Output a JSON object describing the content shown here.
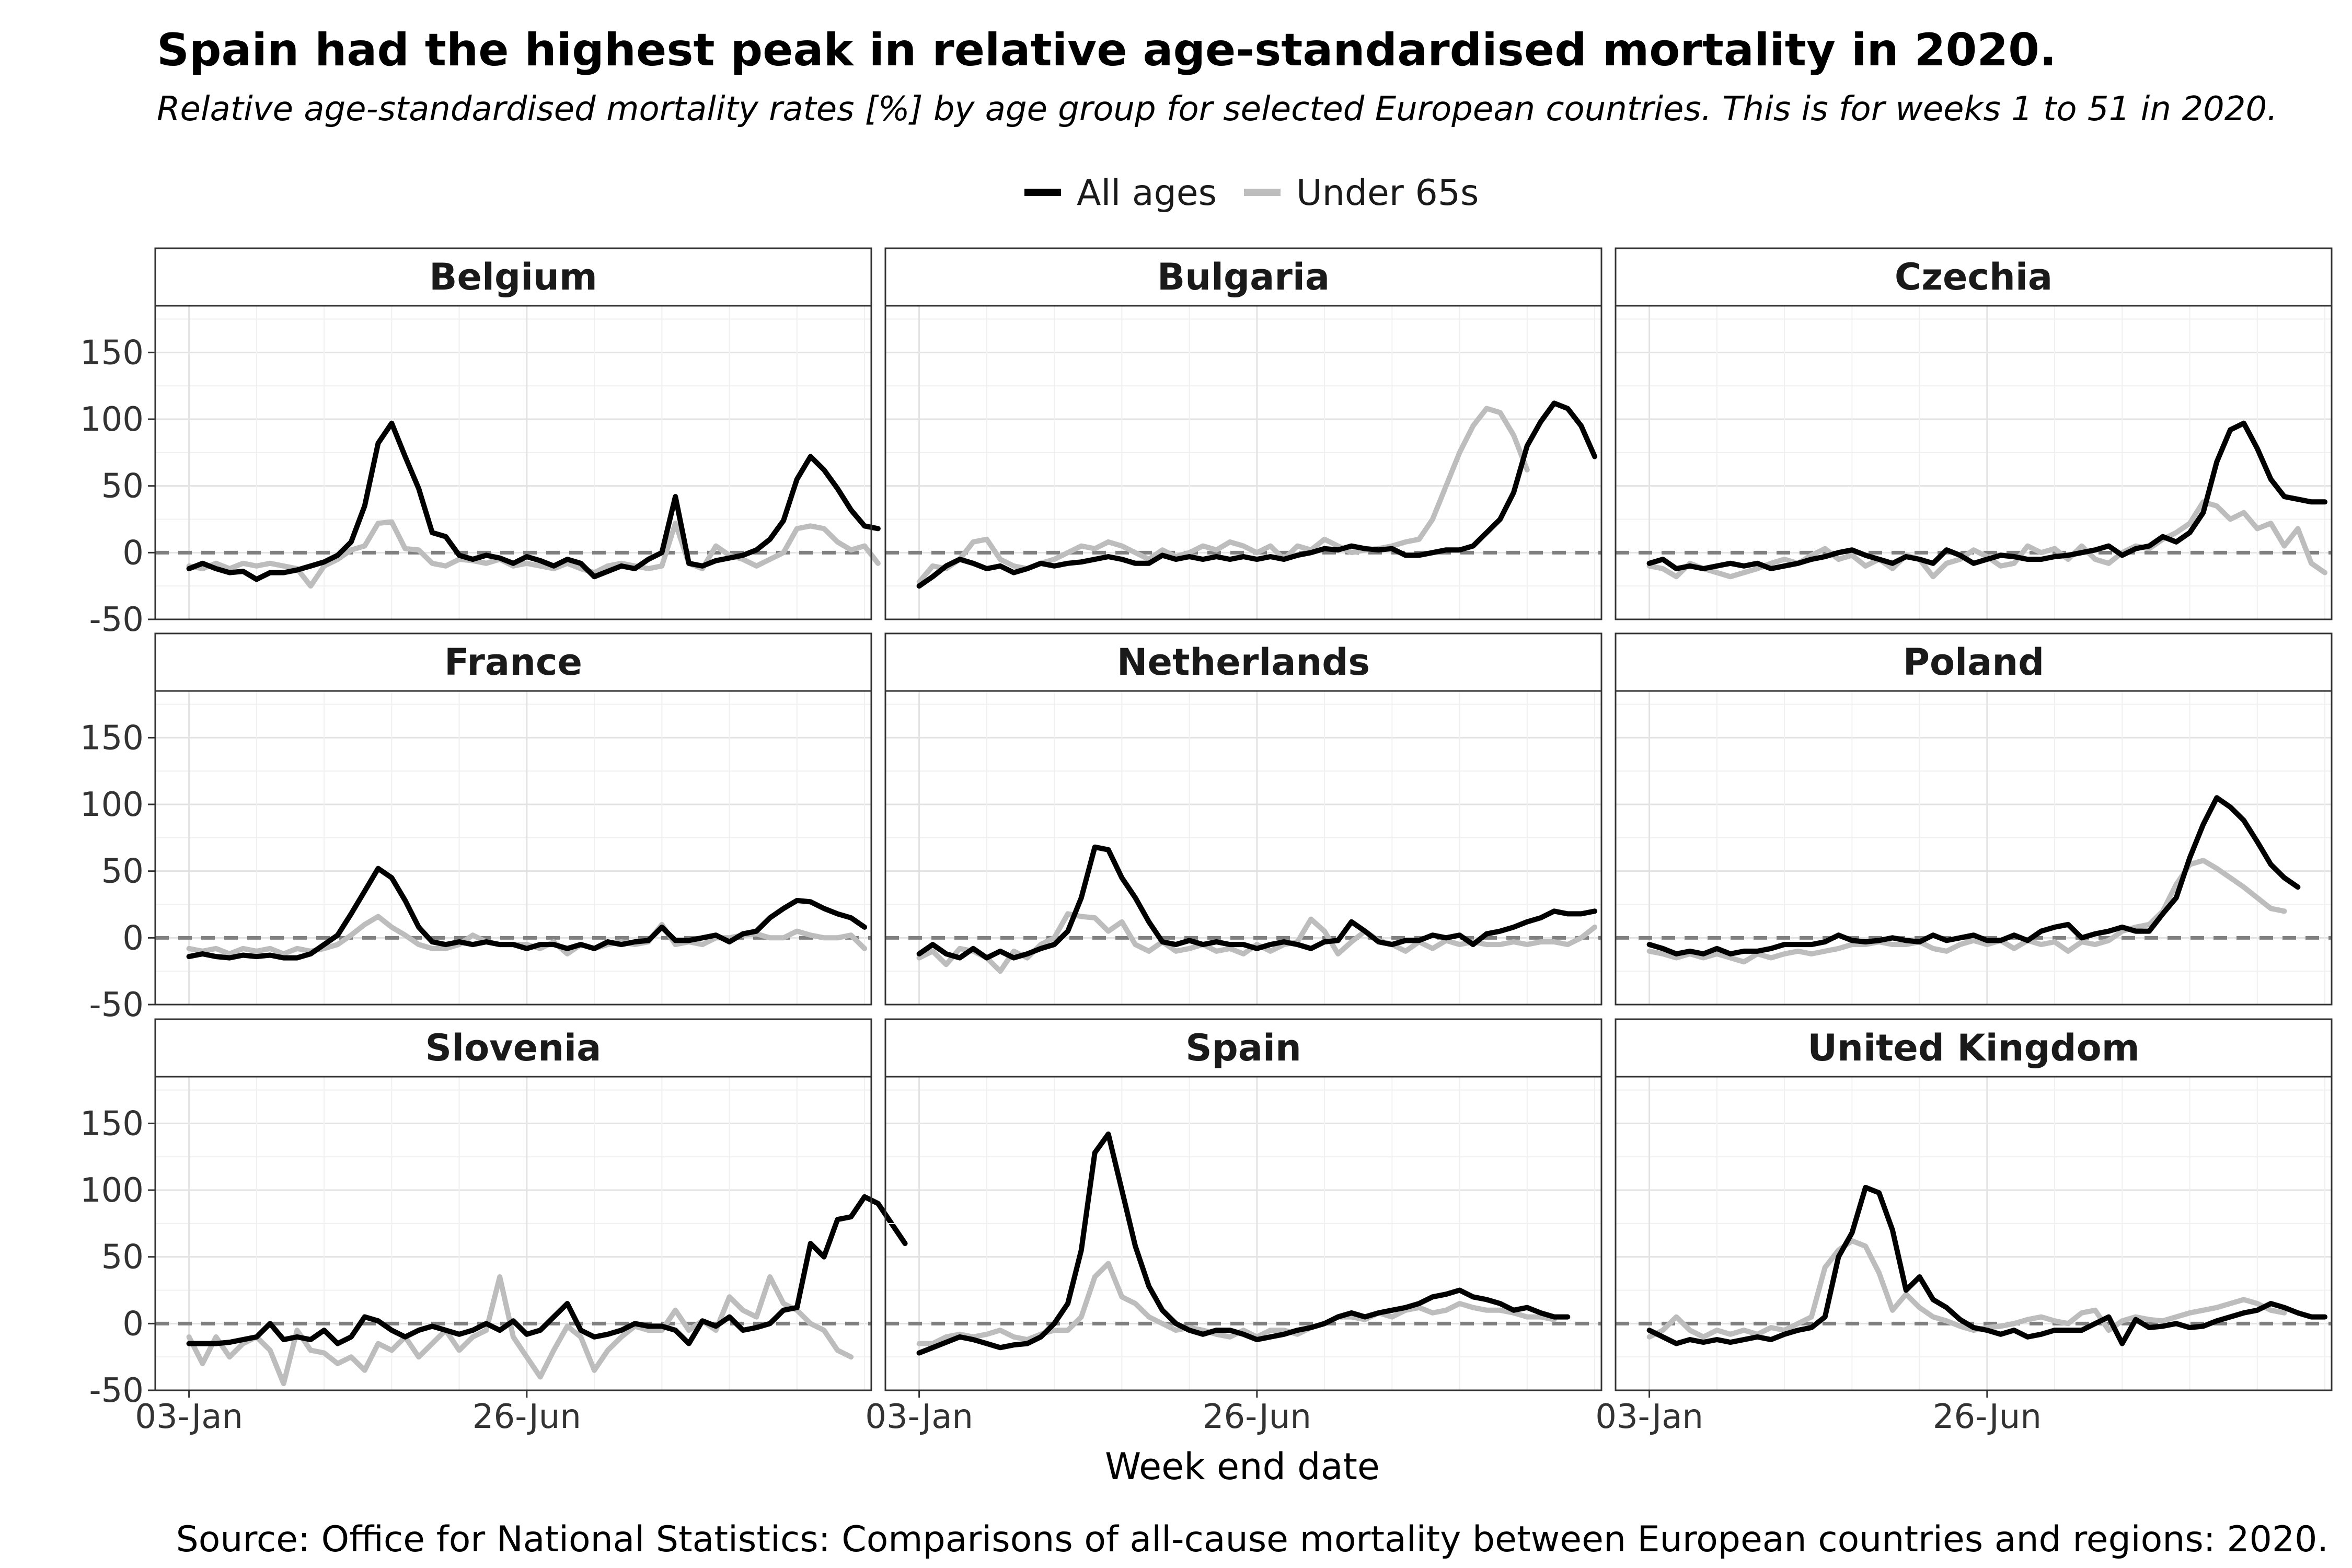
{
  "chart_data": {
    "type": "line",
    "title": "Spain had the highest peak in relative age-standardised mortality in 2020.",
    "subtitle": "Relative age-standardised mortality rates [%] by age group for selected European countries. This is for weeks 1 to 51 in 2020.",
    "xlabel": "Week end date",
    "ylabel": "",
    "caption": "Source: Office for National Statistics: Comparisons of all-cause mortality between European countries and regions: 2020.",
    "ylim": [
      -50,
      185
    ],
    "xlim": [
      -1.5,
      51.5
    ],
    "y_ticks": [
      -50,
      0,
      50,
      100,
      150
    ],
    "y_tick_labels": [
      "-50",
      "0",
      "50",
      "100",
      "150"
    ],
    "x_ticks": [
      {
        "week": 1,
        "label": "03-Jan"
      },
      {
        "week": 26,
        "label": "26-Jun"
      }
    ],
    "reference_line": 0,
    "legend_position": "top",
    "grid": true,
    "series_names": [
      "All ages",
      "Under 65s"
    ],
    "series_colors": {
      "All ages": "#000000",
      "Under 65s": "#bdbdbd"
    },
    "panels": [
      {
        "name": "Belgium",
        "series": [
          {
            "name": "All ages",
            "values": [
              -12,
              -8,
              -12,
              -15,
              -14,
              -20,
              -15,
              -15,
              -13,
              -10,
              -7,
              -2,
              8,
              35,
              82,
              97,
              72,
              48,
              15,
              12,
              -2,
              -5,
              -2,
              -4,
              -8,
              -3,
              -6,
              -10,
              -5,
              -8,
              -18,
              -14,
              -10,
              -12,
              -5,
              0,
              42,
              -8,
              -10,
              -6,
              -4,
              -2,
              2,
              10,
              24,
              55,
              72,
              62,
              48,
              32,
              20,
              18
            ]
          },
          {
            "name": "Under 65s",
            "values": [
              -10,
              -12,
              -8,
              -12,
              -8,
              -10,
              -8,
              -10,
              -12,
              -25,
              -10,
              -5,
              2,
              5,
              22,
              23,
              3,
              2,
              -8,
              -10,
              -5,
              -6,
              -8,
              -5,
              -10,
              -8,
              -10,
              -12,
              -8,
              -12,
              -15,
              -10,
              -8,
              -10,
              -12,
              -10,
              22,
              -8,
              -12,
              5,
              -2,
              -5,
              -10,
              -5,
              0,
              18,
              20,
              18,
              8,
              2,
              5,
              -8
            ]
          }
        ]
      },
      {
        "name": "Bulgaria",
        "series": [
          {
            "name": "All ages",
            "values": [
              -25,
              -18,
              -10,
              -5,
              -8,
              -12,
              -10,
              -15,
              -12,
              -8,
              -10,
              -8,
              -7,
              -5,
              -3,
              -5,
              -8,
              -8,
              -2,
              -5,
              -3,
              -5,
              -3,
              -5,
              -3,
              -5,
              -3,
              -5,
              -2,
              0,
              3,
              2,
              5,
              3,
              2,
              3,
              -2,
              -2,
              0,
              2,
              2,
              5,
              15,
              25,
              45,
              80,
              98,
              112,
              108,
              95,
              72
            ]
          },
          {
            "name": "Under 65s",
            "values": [
              -22,
              -10,
              -12,
              -5,
              8,
              10,
              -5,
              -10,
              -12,
              -8,
              -5,
              0,
              5,
              3,
              8,
              5,
              0,
              -5,
              2,
              -3,
              0,
              5,
              2,
              8,
              5,
              0,
              5,
              -5,
              5,
              2,
              10,
              5,
              0,
              2,
              3,
              5,
              8,
              10,
              25,
              50,
              75,
              95,
              108,
              105,
              88,
              62
            ]
          }
        ]
      },
      {
        "name": "Czechia",
        "series": [
          {
            "name": "All ages",
            "values": [
              -8,
              -5,
              -12,
              -10,
              -12,
              -10,
              -8,
              -10,
              -8,
              -12,
              -10,
              -8,
              -5,
              -3,
              0,
              2,
              -2,
              -5,
              -8,
              -3,
              -5,
              -8,
              2,
              -2,
              -8,
              -5,
              -2,
              -3,
              -5,
              -5,
              -3,
              -2,
              0,
              2,
              5,
              -2,
              3,
              5,
              12,
              8,
              15,
              30,
              68,
              92,
              97,
              78,
              55,
              42,
              40,
              38,
              38
            ]
          },
          {
            "name": "Under 65s",
            "values": [
              -10,
              -12,
              -18,
              -8,
              -12,
              -15,
              -18,
              -15,
              -12,
              -8,
              -5,
              -8,
              -2,
              3,
              -5,
              -2,
              -10,
              -5,
              -12,
              -2,
              -5,
              -18,
              -8,
              -5,
              2,
              -3,
              -10,
              -8,
              5,
              0,
              3,
              -5,
              5,
              -5,
              -8,
              0,
              5,
              3,
              10,
              15,
              22,
              38,
              35,
              25,
              30,
              18,
              22,
              5,
              18,
              -8,
              -15
            ]
          }
        ]
      },
      {
        "name": "France",
        "series": [
          {
            "name": "All ages",
            "values": [
              -14,
              -12,
              -14,
              -15,
              -13,
              -14,
              -13,
              -15,
              -15,
              -12,
              -5,
              2,
              18,
              35,
              52,
              45,
              28,
              8,
              -3,
              -5,
              -3,
              -5,
              -3,
              -5,
              -5,
              -8,
              -5,
              -5,
              -8,
              -5,
              -8,
              -3,
              -5,
              -3,
              -2,
              8,
              -2,
              -2,
              0,
              2,
              -3,
              3,
              5,
              15,
              22,
              28,
              27,
              22,
              18,
              15,
              8
            ]
          },
          {
            "name": "Under 65s",
            "values": [
              -8,
              -10,
              -8,
              -12,
              -8,
              -10,
              -8,
              -12,
              -8,
              -10,
              -8,
              -5,
              2,
              10,
              16,
              8,
              2,
              -5,
              -8,
              -8,
              -5,
              2,
              -3,
              -5,
              -5,
              -5,
              -8,
              -3,
              -12,
              -5,
              -8,
              -5,
              -3,
              -5,
              -3,
              10,
              -5,
              -3,
              -5,
              0,
              0,
              2,
              3,
              0,
              0,
              5,
              2,
              0,
              0,
              2,
              -8
            ]
          }
        ]
      },
      {
        "name": "Netherlands",
        "series": [
          {
            "name": "All ages",
            "values": [
              -12,
              -5,
              -12,
              -15,
              -8,
              -15,
              -10,
              -15,
              -12,
              -8,
              -5,
              5,
              30,
              68,
              66,
              45,
              30,
              12,
              -3,
              -5,
              -2,
              -5,
              -3,
              -5,
              -5,
              -8,
              -5,
              -3,
              -5,
              -8,
              -3,
              -2,
              12,
              5,
              -3,
              -5,
              -2,
              -2,
              2,
              0,
              2,
              -5,
              3,
              5,
              8,
              12,
              15,
              20,
              18,
              18,
              20
            ]
          },
          {
            "name": "Under 65s",
            "values": [
              -15,
              -10,
              -20,
              -8,
              -10,
              -15,
              -25,
              -10,
              -15,
              -5,
              0,
              18,
              16,
              15,
              5,
              12,
              -5,
              -10,
              -3,
              -10,
              -8,
              -5,
              -10,
              -8,
              -12,
              -5,
              -10,
              -5,
              -3,
              14,
              5,
              -12,
              -3,
              5,
              -2,
              -5,
              -10,
              -3,
              -8,
              -2,
              -5,
              -3,
              -5,
              -5,
              -3,
              -5,
              -3,
              -3,
              -5,
              0,
              8
            ]
          }
        ]
      },
      {
        "name": "Poland",
        "series": [
          {
            "name": "All ages",
            "values": [
              -5,
              -8,
              -12,
              -10,
              -12,
              -8,
              -12,
              -10,
              -10,
              -8,
              -5,
              -5,
              -5,
              -3,
              2,
              -2,
              -3,
              -2,
              0,
              -2,
              -3,
              2,
              -2,
              0,
              2,
              -2,
              -2,
              2,
              -2,
              5,
              8,
              10,
              0,
              3,
              5,
              8,
              5,
              5,
              18,
              30,
              60,
              85,
              105,
              98,
              88,
              72,
              55,
              45,
              38
            ]
          },
          {
            "name": "Under 65s",
            "values": [
              -10,
              -12,
              -15,
              -12,
              -15,
              -12,
              -15,
              -18,
              -12,
              -15,
              -12,
              -10,
              -12,
              -10,
              -8,
              -5,
              -5,
              -3,
              -5,
              -5,
              -3,
              -8,
              -10,
              -5,
              -2,
              -5,
              -2,
              -8,
              -2,
              -5,
              -3,
              -10,
              -3,
              -5,
              -2,
              5,
              8,
              10,
              20,
              40,
              55,
              58,
              52,
              45,
              38,
              30,
              22,
              20
            ]
          }
        ]
      },
      {
        "name": "Slovenia",
        "series": [
          {
            "name": "All ages",
            "values": [
              -15,
              -15,
              -15,
              -14,
              -12,
              -10,
              0,
              -12,
              -10,
              -12,
              -5,
              -15,
              -10,
              5,
              2,
              -5,
              -10,
              -5,
              -2,
              -5,
              -8,
              -5,
              0,
              -5,
              2,
              -8,
              -5,
              5,
              15,
              -5,
              -10,
              -8,
              -5,
              0,
              -2,
              -2,
              -5,
              -15,
              2,
              -2,
              5,
              -5,
              -3,
              0,
              10,
              12,
              60,
              50,
              78,
              80,
              95,
              90,
              75,
              60
            ]
          },
          {
            "name": "Under 65s",
            "values": [
              -10,
              -30,
              -10,
              -25,
              -15,
              -10,
              -20,
              -45,
              -5,
              -20,
              -22,
              -30,
              -25,
              -35,
              -15,
              -20,
              -10,
              -25,
              -15,
              -5,
              -20,
              -10,
              -5,
              35,
              -10,
              -25,
              -40,
              -20,
              -2,
              -10,
              -35,
              -20,
              -10,
              -2,
              -5,
              -5,
              10,
              -5,
              2,
              -5,
              20,
              10,
              5,
              35,
              15,
              10,
              0,
              -5,
              -20,
              -25
            ]
          }
        ]
      },
      {
        "name": "Spain",
        "series": [
          {
            "name": "All ages",
            "values": [
              -22,
              -18,
              -14,
              -10,
              -12,
              -15,
              -18,
              -16,
              -15,
              -10,
              0,
              15,
              55,
              128,
              142,
              100,
              58,
              28,
              10,
              0,
              -5,
              -8,
              -5,
              -5,
              -8,
              -12,
              -10,
              -8,
              -5,
              -3,
              0,
              5,
              8,
              5,
              8,
              10,
              12,
              15,
              20,
              22,
              25,
              20,
              18,
              15,
              10,
              12,
              8,
              5,
              5
            ]
          },
          {
            "name": "Under 65s",
            "values": [
              -15,
              -15,
              -10,
              -8,
              -10,
              -8,
              -5,
              -10,
              -12,
              -8,
              -5,
              -5,
              5,
              35,
              45,
              20,
              15,
              5,
              0,
              -5,
              -3,
              -5,
              -8,
              -10,
              -5,
              -10,
              -5,
              -5,
              -8,
              -3,
              0,
              5,
              5,
              3,
              8,
              5,
              10,
              12,
              8,
              10,
              15,
              12,
              10,
              10,
              8,
              5,
              5,
              3
            ]
          }
        ]
      },
      {
        "name": "United Kingdom",
        "series": [
          {
            "name": "All ages",
            "values": [
              -5,
              -10,
              -15,
              -12,
              -14,
              -12,
              -14,
              -12,
              -10,
              -12,
              -8,
              -5,
              -3,
              5,
              50,
              68,
              102,
              98,
              70,
              25,
              35,
              18,
              12,
              3,
              -3,
              -5,
              -8,
              -5,
              -10,
              -8,
              -5,
              -5,
              -5,
              0,
              5,
              -15,
              3,
              -3,
              -2,
              0,
              -3,
              -2,
              2,
              5,
              8,
              10,
              15,
              12,
              8,
              5,
              5
            ]
          },
          {
            "name": "Under 65s",
            "values": [
              -10,
              -5,
              5,
              -5,
              -10,
              -5,
              -8,
              -5,
              -8,
              -3,
              -5,
              0,
              5,
              42,
              55,
              62,
              58,
              38,
              10,
              22,
              12,
              5,
              2,
              -2,
              -5,
              -3,
              -2,
              0,
              3,
              5,
              2,
              0,
              8,
              10,
              -5,
              2,
              5,
              3,
              2,
              5,
              8,
              10,
              12,
              15,
              18,
              15,
              10,
              8
            ]
          }
        ]
      }
    ]
  }
}
